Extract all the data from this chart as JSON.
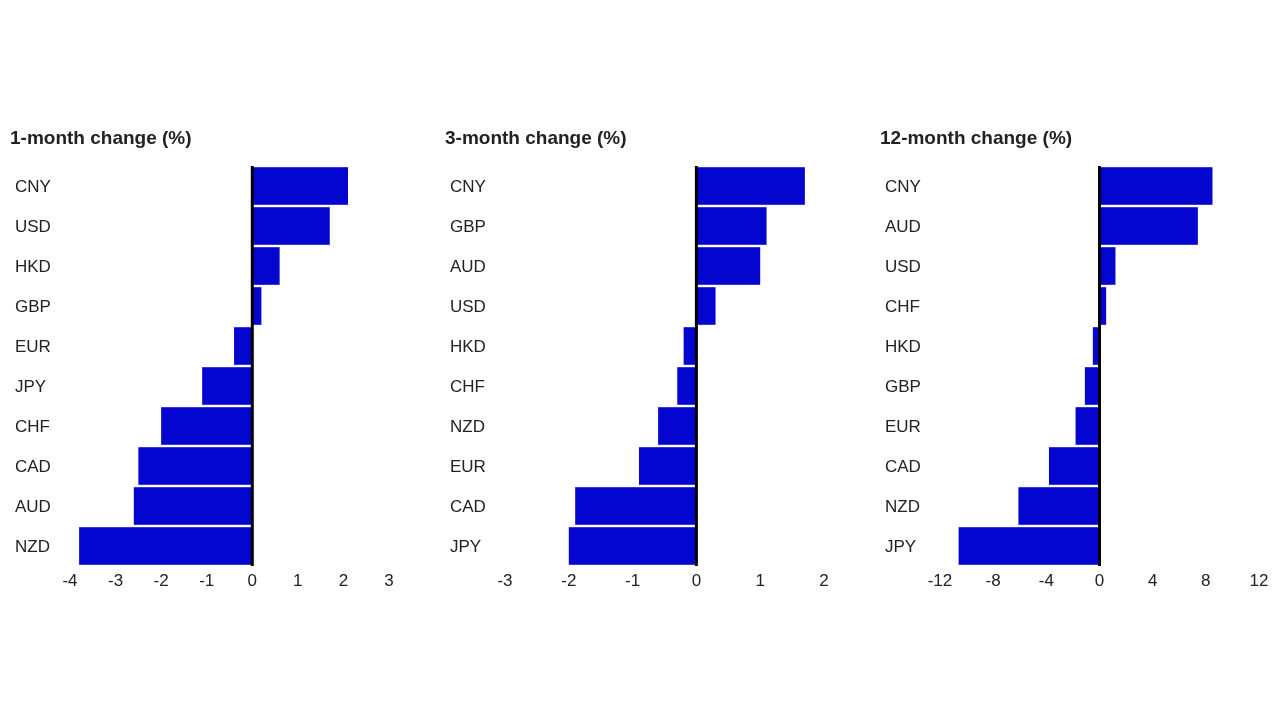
{
  "chart_data": [
    {
      "type": "bar",
      "orientation": "horizontal",
      "title": "1-month change (%)",
      "categories": [
        "CNY",
        "USD",
        "HKD",
        "GBP",
        "EUR",
        "JPY",
        "CHF",
        "CAD",
        "AUD",
        "NZD"
      ],
      "values": [
        2.1,
        1.7,
        0.6,
        0.2,
        -0.4,
        -1.1,
        -2.0,
        -2.5,
        -2.6,
        -3.8
      ],
      "color": "#0505d0",
      "xlim": [
        -4,
        3
      ],
      "xticks": [
        -4,
        -3,
        -2,
        -1,
        0,
        1,
        2,
        3
      ]
    },
    {
      "type": "bar",
      "orientation": "horizontal",
      "title": "3-month change (%)",
      "categories": [
        "CNY",
        "GBP",
        "AUD",
        "USD",
        "HKD",
        "CHF",
        "NZD",
        "EUR",
        "CAD",
        "JPY"
      ],
      "values": [
        1.7,
        1.1,
        1.0,
        0.3,
        -0.2,
        -0.3,
        -0.6,
        -0.9,
        -1.9,
        -2.0
      ],
      "color": "#0505d0",
      "xlim": [
        -3,
        2
      ],
      "xticks": [
        -3,
        -2,
        -1,
        0,
        1,
        2
      ]
    },
    {
      "type": "bar",
      "orientation": "horizontal",
      "title": "12-month change (%)",
      "categories": [
        "CNY",
        "AUD",
        "USD",
        "CHF",
        "HKD",
        "GBP",
        "EUR",
        "CAD",
        "NZD",
        "JPY"
      ],
      "values": [
        8.5,
        7.4,
        1.2,
        0.5,
        -0.5,
        -1.1,
        -1.8,
        -3.8,
        -6.1,
        -10.6
      ],
      "color": "#0505d0",
      "xlim": [
        -12,
        12
      ],
      "xticks": [
        -12,
        -8,
        -4,
        0,
        4,
        8,
        12
      ]
    }
  ]
}
